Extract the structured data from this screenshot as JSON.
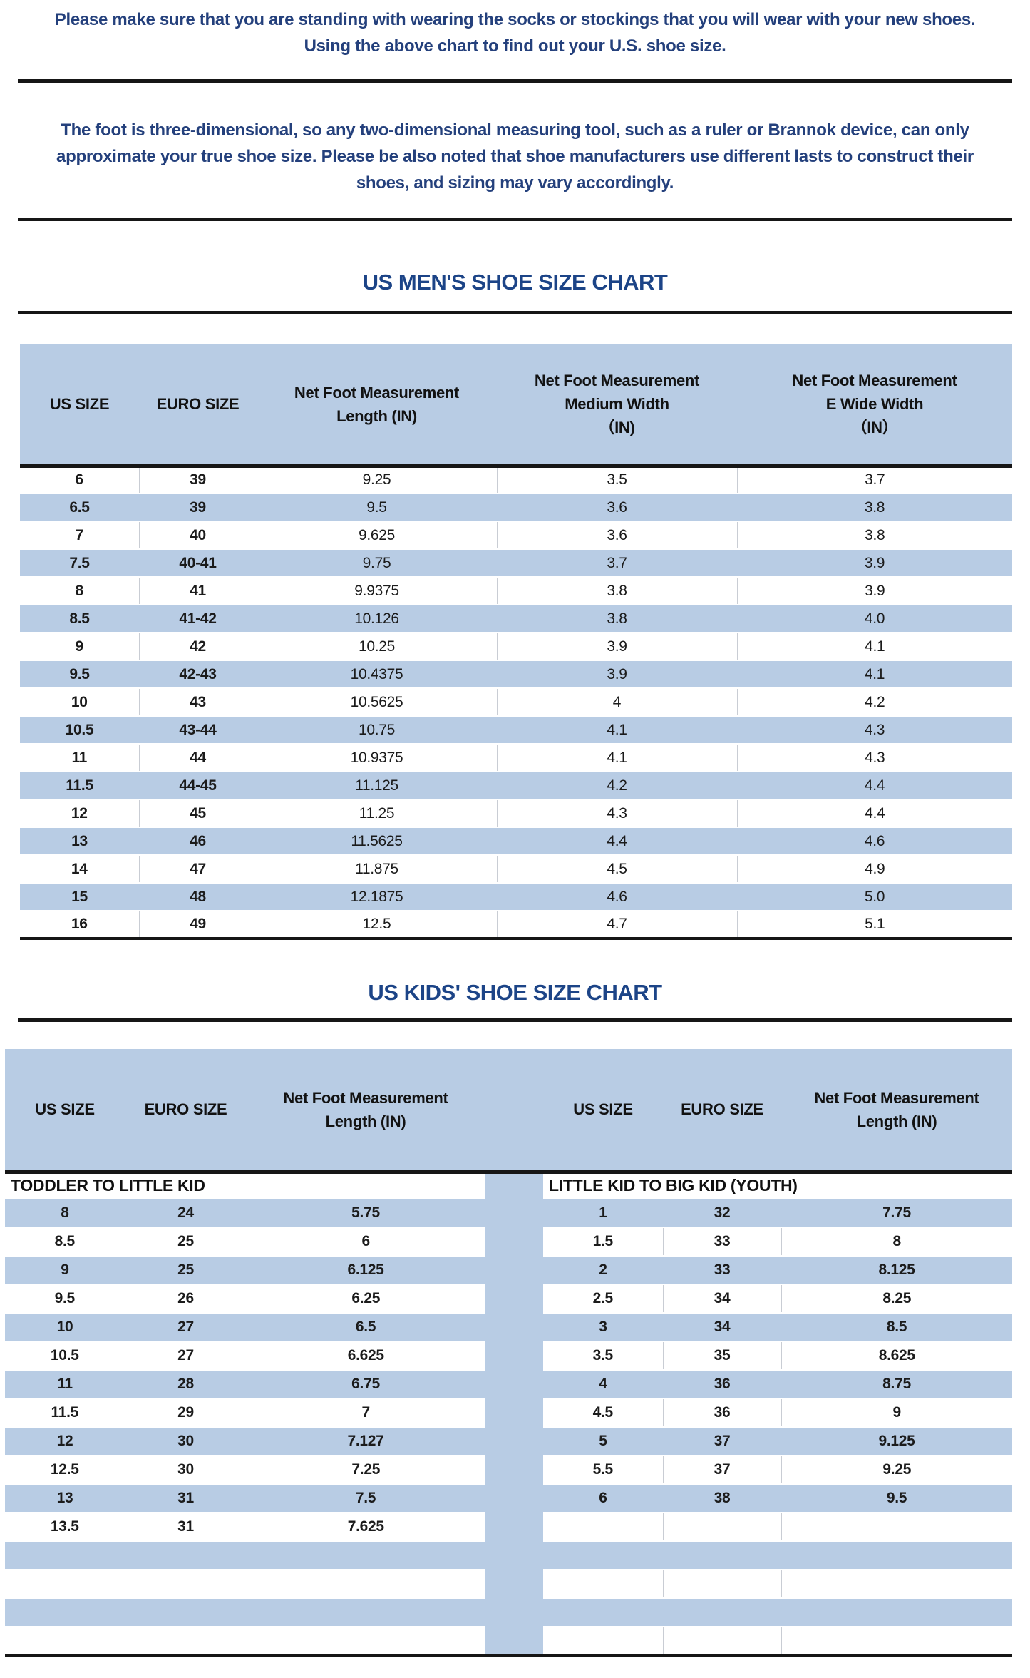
{
  "intro": {
    "line1": "Please make sure that you are standing with wearing the socks or stockings that you will wear with your new shoes.",
    "line2": "Using the above chart to find out your U.S. shoe size."
  },
  "note": {
    "line1": "The foot is three-dimensional, so any two-dimensional measuring tool, such as a ruler or Brannok device, can only",
    "line2": "approximate your true shoe size. Please be also noted that shoe manufacturers use different lasts to construct their",
    "line3": "shoes, and sizing may vary accordingly."
  },
  "mens_chart": {
    "title": "US MEN'S SHOE SIZE CHART",
    "columns": [
      [
        "US SIZE"
      ],
      [
        "EURO SIZE"
      ],
      [
        "Net Foot Measurement",
        "Length (IN)"
      ],
      [
        "Net Foot Measurement",
        "Medium Width",
        "（IN)"
      ],
      [
        "Net Foot Measurement",
        "E Wide Width",
        "（IN）"
      ]
    ],
    "rows": [
      [
        "6",
        "39",
        "9.25",
        "3.5",
        "3.7"
      ],
      [
        "6.5",
        "39",
        "9.5",
        "3.6",
        "3.8"
      ],
      [
        "7",
        "40",
        "9.625",
        "3.6",
        "3.8"
      ],
      [
        "7.5",
        "40-41",
        "9.75",
        "3.7",
        "3.9"
      ],
      [
        "8",
        "41",
        "9.9375",
        "3.8",
        "3.9"
      ],
      [
        "8.5",
        "41-42",
        "10.126",
        "3.8",
        "4.0"
      ],
      [
        "9",
        "42",
        "10.25",
        "3.9",
        "4.1"
      ],
      [
        "9.5",
        "42-43",
        "10.4375",
        "3.9",
        "4.1"
      ],
      [
        "10",
        "43",
        "10.5625",
        "4",
        "4.2"
      ],
      [
        "10.5",
        "43-44",
        "10.75",
        "4.1",
        "4.3"
      ],
      [
        "11",
        "44",
        "10.9375",
        "4.1",
        "4.3"
      ],
      [
        "11.5",
        "44-45",
        "11.125",
        "4.2",
        "4.4"
      ],
      [
        "12",
        "45",
        "11.25",
        "4.3",
        "4.4"
      ],
      [
        "13",
        "46",
        "11.5625",
        "4.4",
        "4.6"
      ],
      [
        "14",
        "47",
        "11.875",
        "4.5",
        "4.9"
      ],
      [
        "15",
        "48",
        "12.1875",
        "4.6",
        "5.0"
      ],
      [
        "16",
        "49",
        "12.5",
        "4.7",
        "5.1"
      ]
    ]
  },
  "kids_chart": {
    "title": "US KIDS' SHOE SIZE CHART",
    "columns": [
      [
        "US SIZE"
      ],
      [
        "EURO SIZE"
      ],
      [
        "Net Foot Measurement",
        "Length (IN)"
      ],
      [
        "US SIZE"
      ],
      [
        "EURO SIZE"
      ],
      [
        "Net Foot Measurement",
        "Length (IN)"
      ]
    ],
    "left_section": "TODDLER TO LITTLE KID",
    "right_section": "LITTLE KID TO BIG KID (YOUTH)",
    "left_rows": [
      [
        "8",
        "24",
        "5.75"
      ],
      [
        "8.5",
        "25",
        "6"
      ],
      [
        "9",
        "25",
        "6.125"
      ],
      [
        "9.5",
        "26",
        "6.25"
      ],
      [
        "10",
        "27",
        "6.5"
      ],
      [
        "10.5",
        "27",
        "6.625"
      ],
      [
        "11",
        "28",
        "6.75"
      ],
      [
        "11.5",
        "29",
        "7"
      ],
      [
        "12",
        "30",
        "7.127"
      ],
      [
        "12.5",
        "30",
        "7.25"
      ],
      [
        "13",
        "31",
        "7.5"
      ],
      [
        "13.5",
        "31",
        "7.625"
      ]
    ],
    "right_rows": [
      [
        "1",
        "32",
        "7.75"
      ],
      [
        "1.5",
        "33",
        "8"
      ],
      [
        "2",
        "33",
        "8.125"
      ],
      [
        "2.5",
        "34",
        "8.25"
      ],
      [
        "3",
        "34",
        "8.5"
      ],
      [
        "3.5",
        "35",
        "8.625"
      ],
      [
        "4",
        "36",
        "8.75"
      ],
      [
        "4.5",
        "36",
        "9"
      ],
      [
        "5",
        "37",
        "9.125"
      ],
      [
        "5.5",
        "37",
        "9.25"
      ],
      [
        "6",
        "38",
        "9.5"
      ]
    ],
    "total_body_rows": 16
  },
  "colors": {
    "row_blue": "#b8cce4",
    "heading_blue": "#1c4487",
    "paragraph_navy": "#24407c",
    "rule_black": "#161616"
  }
}
